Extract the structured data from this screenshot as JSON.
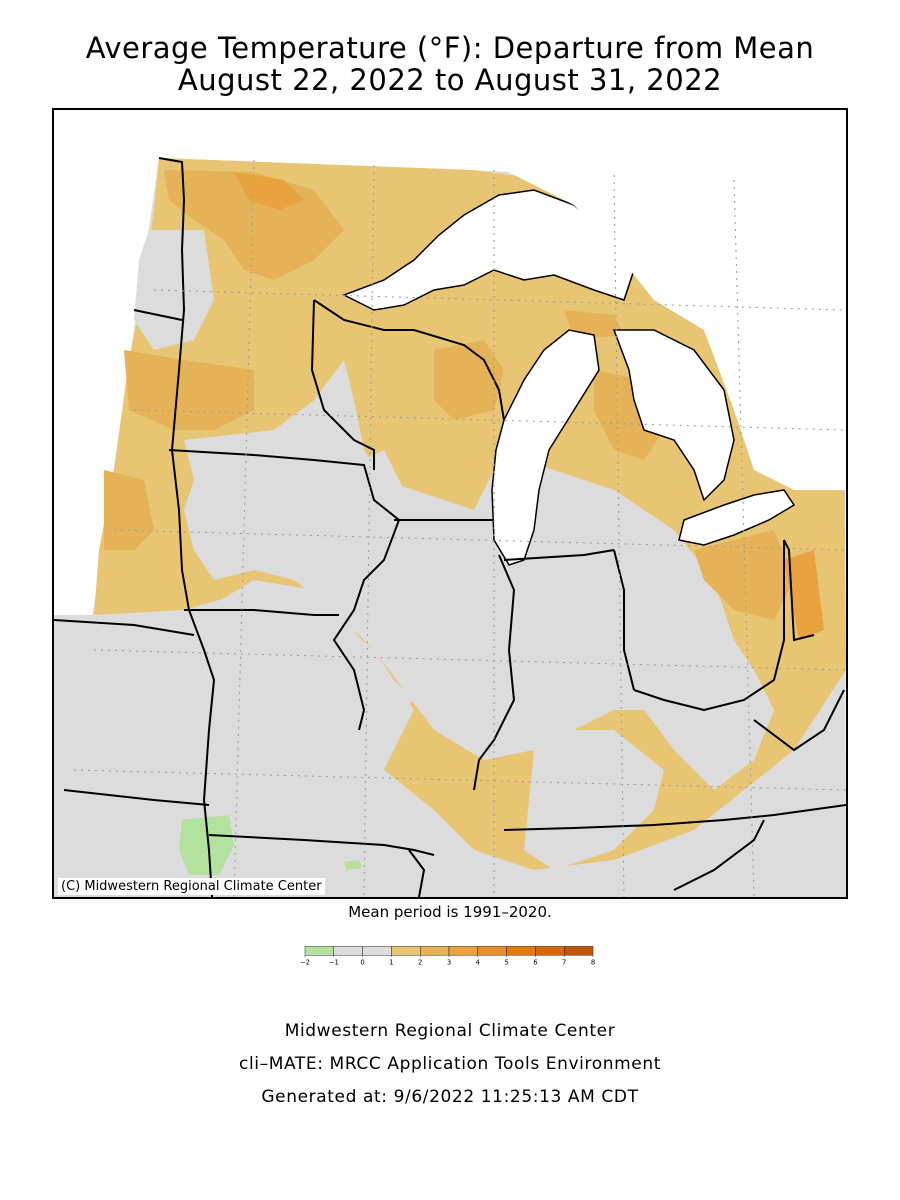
{
  "title": {
    "line1": "Average Temperature (°F): Departure from Mean",
    "line2": "August 22, 2022 to August 31, 2022"
  },
  "map": {
    "copyright": "(C) Midwestern Regional Climate Center",
    "mean_period": "Mean period is 1991–2020."
  },
  "legend": {
    "ticks": [
      "−2",
      "−1",
      "0",
      "1",
      "2",
      "3",
      "4",
      "5",
      "6",
      "7",
      "8"
    ],
    "colors": [
      "#b3e29f",
      "#dcdcdc",
      "#dcdcdc",
      "#e8c572",
      "#e6b258",
      "#e8a23e",
      "#e88e2a",
      "#e57a0c",
      "#db6808",
      "#c45304"
    ]
  },
  "colors": {
    "water": "#ffffff",
    "neutral": "#dcdcdc",
    "warm1": "#e8c572",
    "warm2": "#e6b258",
    "warm3": "#e8a23e",
    "cool1": "#b3e29f"
  },
  "footer": {
    "line1": "Midwestern Regional Climate Center",
    "line2": "cli–MATE: MRCC Application Tools Environment",
    "line3": "Generated at: 9/6/2022 11:25:13 AM CDT"
  }
}
